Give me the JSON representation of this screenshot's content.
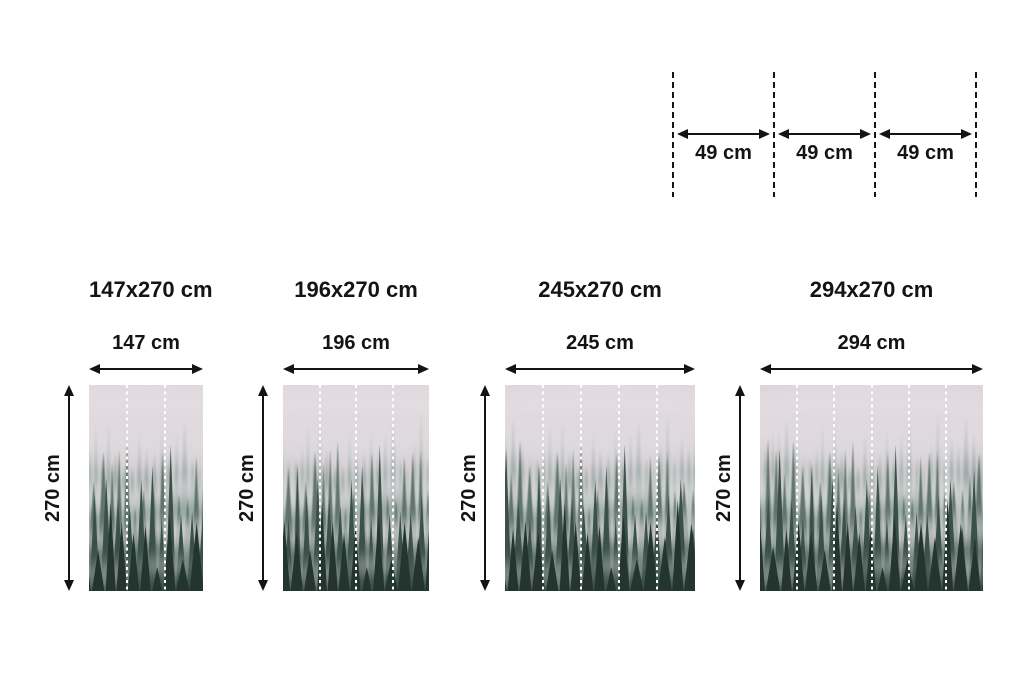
{
  "panel_diagram": {
    "panel_width_cm": 49,
    "segments": [
      {
        "label": "49 cm"
      },
      {
        "label": "49 cm"
      },
      {
        "label": "49 cm"
      }
    ]
  },
  "sizes": [
    {
      "title": "147x270 cm",
      "width_label": "147 cm",
      "height_label": "270 cm",
      "width_cm": 147,
      "height_cm": 270,
      "panels": 3
    },
    {
      "title": "196x270 cm",
      "width_label": "196 cm",
      "height_label": "270 cm",
      "width_cm": 196,
      "height_cm": 270,
      "panels": 4
    },
    {
      "title": "245x270 cm",
      "width_label": "245 cm",
      "height_label": "270 cm",
      "width_cm": 245,
      "height_cm": 270,
      "panels": 5
    },
    {
      "title": "294x270 cm",
      "width_label": "294 cm",
      "height_label": "270 cm",
      "width_cm": 294,
      "height_cm": 270,
      "panels": 6
    }
  ],
  "image": {
    "subject": "foggy-forest-mural",
    "palette": {
      "sky": "#ded4da",
      "far_trees": "#8da09b",
      "mid_trees": "#5b7068",
      "near_trees": "#3a5049",
      "front_trees": "#24352f",
      "fog": "#eae6e9",
      "panel_line": "#ffffff"
    }
  },
  "annotation": {
    "ink": "#141414",
    "background": "#ffffff"
  }
}
